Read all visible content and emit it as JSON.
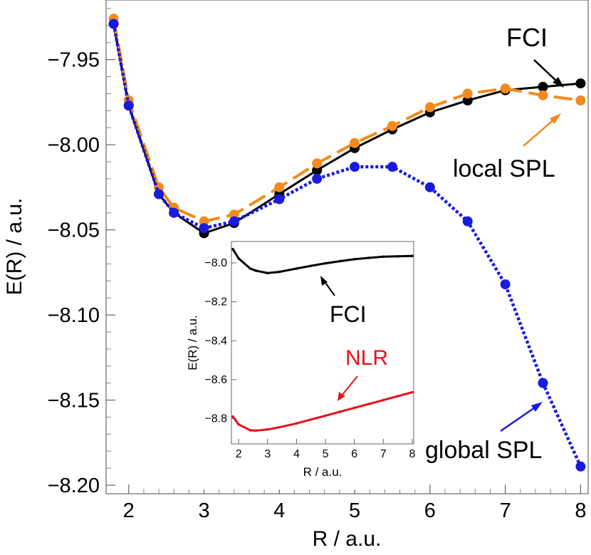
{
  "chart_data": [
    {
      "type": "line",
      "xlabel": "R / a.u.",
      "ylabel": "E(R) / a.u.",
      "xlim": [
        1.7,
        8.1
      ],
      "ylim": [
        -8.205,
        -7.915
      ],
      "xticks": [
        "2",
        "3",
        "4",
        "5",
        "6",
        "7",
        "8"
      ],
      "yticks": [
        "-7.95",
        "-8.00",
        "-8.05",
        "-8.10",
        "-8.15",
        "-8.20"
      ],
      "annotations": [
        "FCI",
        "local SPL",
        "global SPL"
      ],
      "colors": {
        "fci": "#000000",
        "local": "#f28a1e",
        "global": "#1a1adf"
      },
      "series": [
        {
          "key": "fci",
          "style": "solid",
          "x": [
            1.8,
            2.0,
            2.4,
            2.6,
            3.0,
            3.4,
            4.0,
            4.5,
            5.0,
            5.5,
            6.0,
            6.5,
            7.0,
            7.5,
            8.0
          ],
          "y": [
            -7.929,
            -7.977,
            -8.029,
            -8.04,
            -8.052,
            -8.046,
            -8.029,
            -8.015,
            -8.002,
            -7.991,
            -7.981,
            -7.974,
            -7.968,
            -7.966,
            -7.964
          ]
        },
        {
          "key": "local",
          "style": "dashed",
          "x": [
            1.8,
            2.0,
            2.4,
            2.6,
            3.0,
            3.4,
            4.0,
            4.5,
            5.0,
            5.5,
            6.0,
            6.5,
            7.0,
            7.5,
            8.0
          ],
          "y": [
            -7.926,
            -7.974,
            -8.025,
            -8.037,
            -8.045,
            -8.041,
            -8.025,
            -8.011,
            -7.999,
            -7.989,
            -7.978,
            -7.97,
            -7.967,
            -7.971,
            -7.974
          ]
        },
        {
          "key": "global",
          "style": "dotted",
          "x": [
            1.8,
            2.0,
            2.4,
            2.6,
            3.0,
            3.4,
            4.0,
            4.5,
            5.0,
            5.5,
            6.0,
            6.5,
            7.0,
            7.5,
            8.0
          ],
          "y": [
            -7.929,
            -7.977,
            -8.029,
            -8.04,
            -8.049,
            -8.045,
            -8.032,
            -8.02,
            -8.013,
            -8.013,
            -8.025,
            -8.045,
            -8.082,
            -8.14,
            -8.189
          ]
        }
      ]
    },
    {
      "type": "line",
      "xlabel": "R / a.u.",
      "ylabel": "E(R) / a.u.",
      "xlim": [
        1.75,
        8.05
      ],
      "ylim": [
        -8.93,
        -7.89
      ],
      "xticks": [
        "2",
        "3",
        "4",
        "5",
        "6",
        "7",
        "8"
      ],
      "yticks": [
        "-8.0",
        "-8.2",
        "-8.4",
        "-8.6",
        "-8.8"
      ],
      "annotations": [
        "FCI",
        "NLR"
      ],
      "colors": {
        "fci": "#000000",
        "nlr": "#e8101a"
      },
      "series": [
        {
          "key": "fci",
          "x": [
            1.8,
            2.0,
            2.4,
            2.6,
            3.0,
            3.4,
            4.0,
            4.5,
            5.0,
            5.5,
            6.0,
            6.5,
            7.0,
            7.5,
            8.0
          ],
          "y": [
            -7.929,
            -7.977,
            -8.029,
            -8.04,
            -8.052,
            -8.046,
            -8.029,
            -8.015,
            -8.002,
            -7.991,
            -7.981,
            -7.974,
            -7.968,
            -7.966,
            -7.964
          ]
        },
        {
          "key": "nlr",
          "x": [
            1.8,
            2.0,
            2.4,
            2.6,
            3.0,
            3.4,
            4.0,
            4.5,
            5.0,
            5.5,
            6.0,
            6.5,
            7.0,
            7.5,
            8.0
          ],
          "y": [
            -8.79,
            -8.83,
            -8.86,
            -8.862,
            -8.856,
            -8.845,
            -8.825,
            -8.805,
            -8.785,
            -8.765,
            -8.745,
            -8.725,
            -8.705,
            -8.685,
            -8.665
          ]
        }
      ]
    }
  ]
}
